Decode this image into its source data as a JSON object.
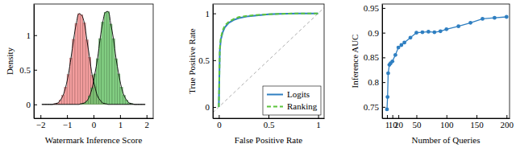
{
  "chart_data": [
    {
      "type": "histogram",
      "xlabel": "Watermark Inference Score",
      "ylabel": "Density",
      "bins": [
        -2,
        -1.9,
        -1.8,
        -1.7,
        -1.6,
        -1.5,
        -1.4,
        -1.3,
        -1.2,
        -1.1,
        -1,
        -0.9,
        -0.8,
        -0.7,
        -0.6,
        -0.5,
        -0.4,
        -0.3,
        -0.2,
        -0.1,
        0,
        0.1,
        0.2,
        0.3,
        0.4,
        0.5,
        0.6,
        0.7,
        0.8,
        0.9,
        1,
        1.1,
        1.2,
        1.3,
        1.4,
        1.5,
        1.6,
        1.7,
        1.8,
        1.9,
        2
      ],
      "series": [
        {
          "color": "#f08c8c",
          "values": [
            0,
            0,
            0,
            0,
            0,
            0.01,
            0.02,
            0.06,
            0.13,
            0.25,
            0.43,
            0.67,
            0.94,
            1.17,
            1.31,
            1.29,
            1.18,
            0.93,
            0.68,
            0.42,
            0.26,
            0.12,
            0.06,
            0.02,
            0.01,
            0,
            0,
            0,
            0,
            0,
            0,
            0,
            0,
            0,
            0,
            0,
            0,
            0,
            0,
            0
          ]
        },
        {
          "color": "#6cc46c",
          "values": [
            0,
            0,
            0,
            0,
            0,
            0,
            0,
            0,
            0,
            0,
            0,
            0,
            0,
            0,
            0,
            0.01,
            0.02,
            0.05,
            0.12,
            0.24,
            0.44,
            0.66,
            0.95,
            1.19,
            1.33,
            1.34,
            1.16,
            0.95,
            0.66,
            0.44,
            0.25,
            0.13,
            0.06,
            0.02,
            0.01,
            0,
            0,
            0,
            0,
            0
          ]
        }
      ],
      "xlim": [
        -2.25,
        2.25
      ],
      "xticks": [
        {
          "value": -2,
          "label": "−2"
        },
        {
          "value": -1,
          "label": "−1"
        },
        0,
        1,
        2
      ],
      "ylim": [
        -0.2,
        1.45
      ],
      "yticks": [
        0,
        0.5,
        1
      ],
      "grid": false
    },
    {
      "type": "line",
      "xlabel": "False Positive Rate",
      "ylabel": "True Positive Rate",
      "x": [
        0,
        0.01,
        0.02,
        0.04,
        0.06,
        0.1,
        0.15,
        0.2,
        0.3,
        0.4,
        0.5,
        0.6,
        0.8,
        1
      ],
      "series": [
        {
          "name": "Logits",
          "color": "#2f7fc1",
          "line_style": "solid",
          "values": [
            0,
            0.6,
            0.72,
            0.8,
            0.85,
            0.9,
            0.93,
            0.95,
            0.97,
            0.98,
            0.99,
            0.995,
            1,
            1
          ]
        },
        {
          "name": "Ranking",
          "color": "#5cc43c",
          "line_style": "dashed",
          "values": [
            0,
            0.62,
            0.74,
            0.82,
            0.87,
            0.91,
            0.94,
            0.96,
            0.975,
            0.985,
            0.99,
            0.995,
            1,
            1
          ]
        }
      ],
      "xlim": [
        -0.06,
        1.06
      ],
      "xticks": [
        0,
        0.5,
        1
      ],
      "ylim": [
        -0.12,
        1.1
      ],
      "yticks": [
        0,
        0.5,
        1
      ],
      "legend": "lower right",
      "grid": false
    },
    {
      "type": "line",
      "xlabel": "Number of Queries",
      "ylabel": "Inference AUC",
      "x": [
        1,
        2,
        3,
        5,
        7,
        10,
        15,
        20,
        25,
        30,
        40,
        50,
        60,
        70,
        80,
        90,
        100,
        120,
        140,
        160,
        180,
        200
      ],
      "series": [
        {
          "color": "#2f7fc1",
          "marker": "circle",
          "line_style": "solid",
          "values": [
            0.745,
            0.77,
            0.818,
            0.835,
            0.838,
            0.842,
            0.855,
            0.87,
            0.875,
            0.88,
            0.89,
            0.9,
            0.901,
            0.902,
            0.901,
            0.903,
            0.907,
            0.913,
            0.92,
            0.928,
            0.93,
            0.932
          ]
        }
      ],
      "xlim": [
        -7,
        205
      ],
      "xticks": [
        1,
        10,
        20,
        50,
        100,
        150,
        200
      ],
      "ylim": [
        0.727,
        0.958
      ],
      "yticks": [
        0.75,
        0.8,
        0.85,
        0.9,
        0.95
      ],
      "grid": false
    }
  ]
}
